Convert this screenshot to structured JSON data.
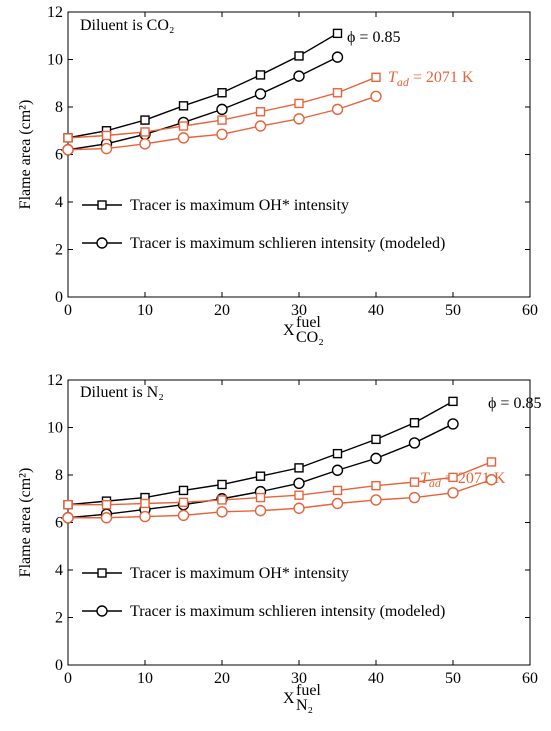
{
  "chart_data": [
    {
      "type": "line",
      "annotation": "Diluent is CO₂",
      "phi_label": "ϕ = 0.85",
      "tad_label": [
        "T",
        "ad",
        " = 2071 K"
      ],
      "ylabel": "Flame area (cm²)",
      "xlabel": [
        "X",
        "fuel",
        "CO₂"
      ],
      "xlim": [
        0,
        60
      ],
      "xticks": [
        0,
        10,
        20,
        30,
        40,
        50,
        60
      ],
      "ylim": [
        0,
        12
      ],
      "yticks": [
        0,
        2,
        4,
        6,
        8,
        10,
        12
      ],
      "series": [
        {
          "name": "Tracer is maximum OH* intensity",
          "color": "#000000",
          "marker": "square",
          "x": [
            0,
            5,
            10,
            15,
            20,
            25,
            30,
            35
          ],
          "values": [
            6.7,
            7.0,
            7.45,
            8.05,
            8.6,
            9.35,
            10.15,
            11.1
          ]
        },
        {
          "name": "Tracer is maximum schlieren intensity (modeled)",
          "color": "#000000",
          "marker": "circle",
          "x": [
            0,
            5,
            10,
            15,
            20,
            25,
            30,
            35
          ],
          "values": [
            6.2,
            6.45,
            6.85,
            7.35,
            7.9,
            8.55,
            9.3,
            10.1
          ]
        },
        {
          "color": "#e8633a",
          "marker": "square",
          "x": [
            0,
            5,
            10,
            15,
            20,
            25,
            30,
            35,
            40
          ],
          "values": [
            6.7,
            6.8,
            6.95,
            7.2,
            7.45,
            7.8,
            8.15,
            8.6,
            9.25
          ]
        },
        {
          "color": "#e8633a",
          "marker": "circle",
          "x": [
            0,
            5,
            10,
            15,
            20,
            25,
            30,
            35,
            40
          ],
          "values": [
            6.2,
            6.25,
            6.45,
            6.7,
            6.85,
            7.2,
            7.5,
            7.9,
            8.45
          ]
        }
      ]
    },
    {
      "type": "line",
      "annotation": "Diluent is N₂",
      "phi_label": "ϕ = 0.85",
      "tad_label": [
        "T",
        "ad",
        " = 2071 K"
      ],
      "ylabel": "Flame area (cm²)",
      "xlabel": [
        "X",
        "fuel",
        "N₂"
      ],
      "xlim": [
        0,
        60
      ],
      "xticks": [
        0,
        10,
        20,
        30,
        40,
        50,
        60
      ],
      "ylim": [
        0,
        12
      ],
      "yticks": [
        0,
        2,
        4,
        6,
        8,
        10,
        12
      ],
      "series": [
        {
          "name": "Tracer is maximum OH* intensity",
          "color": "#000000",
          "marker": "square",
          "x": [
            0,
            5,
            10,
            15,
            20,
            25,
            30,
            35,
            40,
            45,
            50
          ],
          "values": [
            6.75,
            6.9,
            7.05,
            7.35,
            7.6,
            7.95,
            8.3,
            8.9,
            9.5,
            10.2,
            11.1
          ]
        },
        {
          "name": "Tracer is maximum schlieren intensity (modeled)",
          "color": "#000000",
          "marker": "circle",
          "x": [
            0,
            5,
            10,
            15,
            20,
            25,
            30,
            35,
            40,
            45,
            50
          ],
          "values": [
            6.2,
            6.35,
            6.55,
            6.75,
            7.0,
            7.3,
            7.65,
            8.2,
            8.7,
            9.35,
            10.15
          ]
        },
        {
          "color": "#e8633a",
          "marker": "square",
          "x": [
            0,
            5,
            10,
            15,
            20,
            25,
            30,
            35,
            40,
            45,
            50,
            55
          ],
          "values": [
            6.75,
            6.75,
            6.8,
            6.85,
            6.95,
            7.05,
            7.15,
            7.35,
            7.55,
            7.7,
            7.9,
            8.55
          ]
        },
        {
          "color": "#e8633a",
          "marker": "circle",
          "x": [
            0,
            5,
            10,
            15,
            20,
            25,
            30,
            35,
            40,
            45,
            50,
            55
          ],
          "values": [
            6.2,
            6.2,
            6.25,
            6.3,
            6.45,
            6.5,
            6.6,
            6.8,
            6.95,
            7.05,
            7.25,
            7.8
          ]
        }
      ]
    }
  ]
}
